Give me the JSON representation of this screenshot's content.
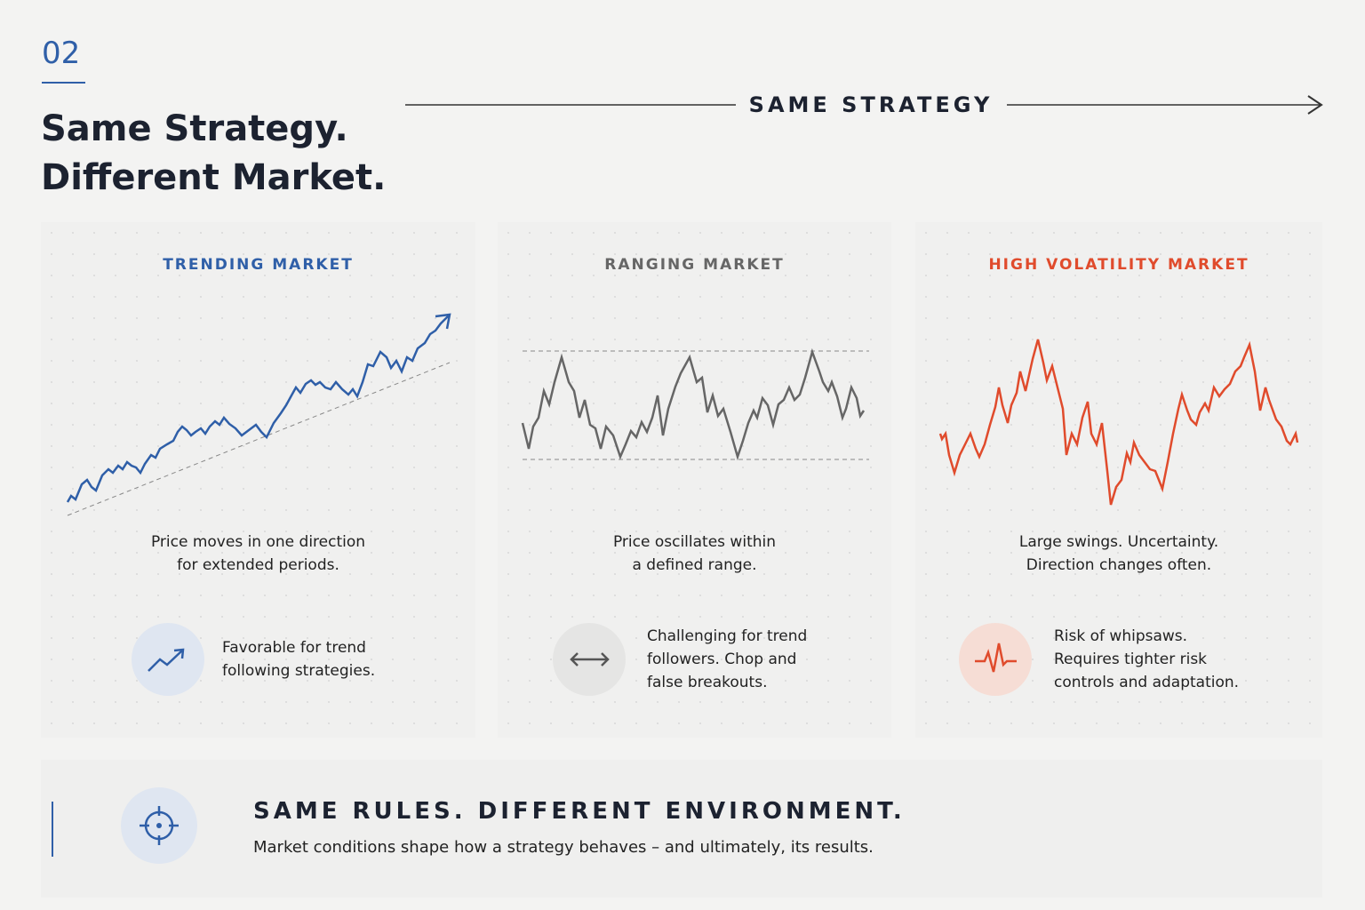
{
  "header": {
    "number": "02",
    "title_lines": [
      "Same Strategy.",
      "Different Market."
    ],
    "banner": "SAME STRATEGY"
  },
  "panels": [
    {
      "title": "TRENDING MARKET",
      "description": [
        "Price moves in one direction",
        "for extended periods."
      ],
      "note": [
        "Favorable for trend",
        "following strategies."
      ]
    },
    {
      "title": "RANGING MARKET",
      "description": [
        "Price oscillates within",
        "a defined range."
      ],
      "note": [
        "Challenging for trend",
        "followers. Chop and",
        "false breakouts."
      ]
    },
    {
      "title": "HIGH VOLATILITY MARKET",
      "description": [
        "Large swings. Uncertainty.",
        "Direction changes often."
      ],
      "note": [
        "Risk of whipsaws.",
        "Requires tighter risk",
        "controls and adaptation."
      ]
    }
  ],
  "footer": {
    "title": "SAME RULES. DIFFERENT ENVIRONMENT.",
    "text": "Market conditions shape how a strategy behaves – and ultimately, its results."
  }
}
